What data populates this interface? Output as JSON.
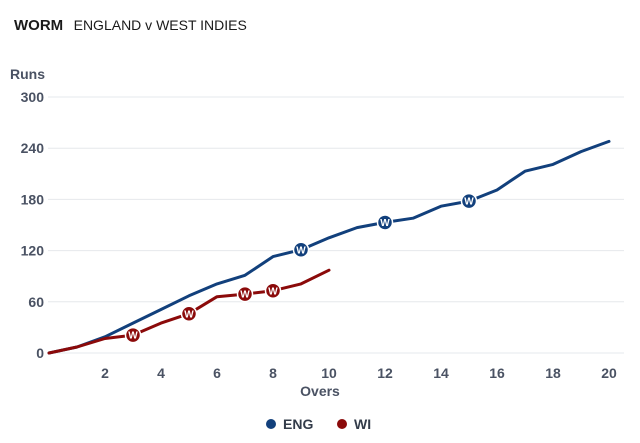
{
  "header": {
    "title": "WORM",
    "subtitle": "ENGLAND v WEST INDIES"
  },
  "chart_data": {
    "type": "line",
    "title": "WORM",
    "subtitle": "ENGLAND v WEST INDIES",
    "xlabel": "Overs",
    "ylabel": "Runs",
    "xlim": [
      0,
      20
    ],
    "ylim": [
      0,
      300
    ],
    "xticks": [
      "2",
      "4",
      "6",
      "8",
      "10",
      "12",
      "14",
      "16",
      "18",
      "20"
    ],
    "yticks": [
      "0",
      "60",
      "120",
      "180",
      "240",
      "300"
    ],
    "grid": true,
    "legend_position": "bottom",
    "wicket_label": "W",
    "series": [
      {
        "name": "ENG",
        "color": "#12407c",
        "x": [
          0,
          1,
          2,
          3,
          4,
          5,
          6,
          7,
          8,
          9,
          10,
          11,
          12,
          13,
          14,
          15,
          16,
          17,
          18,
          19,
          20
        ],
        "values": [
          0,
          7,
          19,
          35,
          51,
          67,
          81,
          91,
          113,
          121,
          135,
          147,
          153,
          158,
          172,
          178,
          191,
          213,
          221,
          236,
          248
        ],
        "wickets": [
          [
            9,
            121
          ],
          [
            12,
            153
          ],
          [
            15,
            178
          ]
        ]
      },
      {
        "name": "WI",
        "color": "#8b0a0a",
        "x": [
          0,
          1,
          2,
          3,
          4,
          5,
          6,
          7,
          8,
          9,
          10
        ],
        "values": [
          0,
          7,
          17,
          21,
          35,
          46,
          66,
          69,
          73,
          81,
          97
        ],
        "wickets": [
          [
            3,
            21
          ],
          [
            5,
            46
          ],
          [
            7,
            69
          ],
          [
            8,
            73
          ]
        ]
      }
    ]
  }
}
